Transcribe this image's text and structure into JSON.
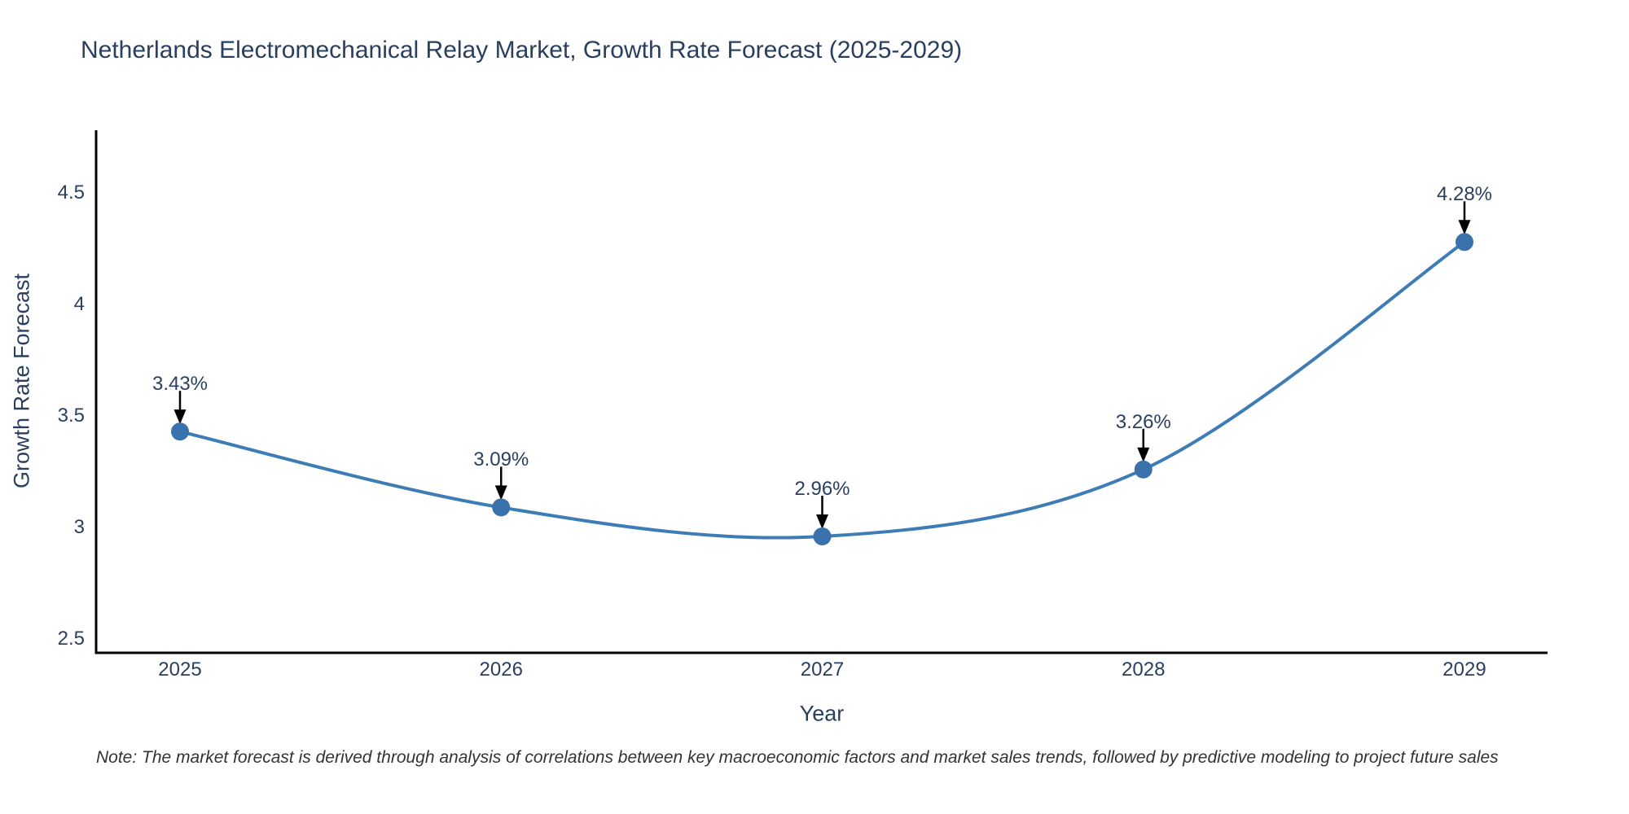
{
  "chart": {
    "title": "Netherlands Electromechanical Relay Market, Growth Rate Forecast (2025-2029)",
    "note": "Note: The market forecast is derived through analysis of correlations between key macroeconomic factors and market sales trends, followed by predictive modeling to project future sales"
  },
  "chart_data": {
    "type": "line",
    "title": "Netherlands Electromechanical Relay Market, Growth Rate Forecast (2025-2029)",
    "xlabel": "Year",
    "ylabel": "Growth Rate Forecast",
    "x": [
      2025,
      2026,
      2027,
      2028,
      2029
    ],
    "y": [
      3.43,
      3.09,
      2.96,
      3.26,
      4.28
    ],
    "labels": [
      "3.43%",
      "3.09%",
      "2.96%",
      "3.26%",
      "4.28%"
    ],
    "y_ticks": [
      2.5,
      3,
      3.5,
      4,
      4.5
    ],
    "ylim": [
      2.44,
      4.78
    ],
    "line_shape": "spline",
    "grid": false,
    "legend": "none",
    "line_color": "#3d7cb5",
    "marker_color": "#3a72ad",
    "arrow_color": "#000000",
    "axis_color": "#000000",
    "text_color": "#2a3f5f"
  }
}
